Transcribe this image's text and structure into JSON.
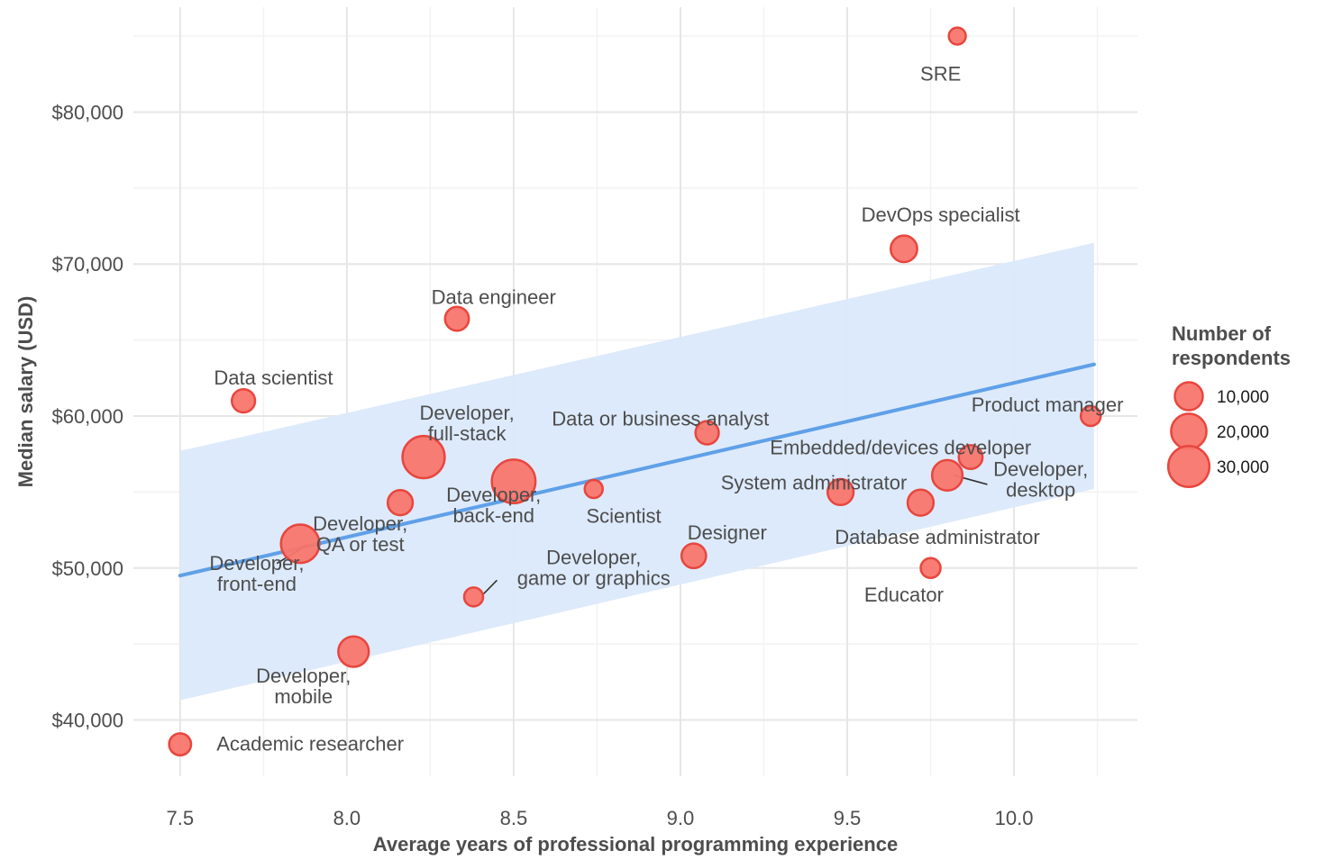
{
  "chart_data": {
    "type": "scatter",
    "title": "",
    "xlabel": "Average years of professional programming experience",
    "ylabel": "Median salary (USD)",
    "xlim": [
      7.36,
      10.37
    ],
    "ylim": [
      36300,
      86900
    ],
    "x_ticks": [
      7.5,
      8.0,
      8.5,
      9.0,
      9.5,
      10.0
    ],
    "x_tick_labels": [
      "7.5",
      "8.0",
      "8.5",
      "9.0",
      "9.5",
      "10.0"
    ],
    "y_ticks": [
      40000,
      50000,
      60000,
      70000,
      80000
    ],
    "y_tick_labels": [
      "$40,000",
      "$50,000",
      "$60,000",
      "$70,000",
      "$80,000"
    ],
    "grid": true,
    "point_color": "#f8766d",
    "point_edge_color": "#e8463e",
    "trend_color": "#5fa0e8",
    "band_color": "#dbe9fb",
    "trend": {
      "x": [
        7.5,
        10.24
      ],
      "y": [
        49500,
        63400
      ],
      "ci_lower": [
        41300,
        55200
      ],
      "ci_upper": [
        57700,
        71400
      ]
    },
    "points": [
      {
        "lines": [
          "SRE"
        ],
        "x": 9.83,
        "y": 85000,
        "n": 1500,
        "label_x": 9.78,
        "label_y": 82500
      },
      {
        "lines": [
          "DevOps specialist"
        ],
        "x": 9.67,
        "y": 71000,
        "n": 8500,
        "label_x": 9.78,
        "label_y": 73200
      },
      {
        "lines": [
          "Data engineer"
        ],
        "x": 8.33,
        "y": 66400,
        "n": 6000,
        "label_x": 8.44,
        "label_y": 67800
      },
      {
        "lines": [
          "Data scientist"
        ],
        "x": 7.69,
        "y": 61000,
        "n": 5500,
        "label_x": 7.78,
        "label_y": 62500
      },
      {
        "lines": [
          "Product manager"
        ],
        "x": 10.23,
        "y": 60000,
        "n": 3000,
        "label_x": 10.1,
        "label_y": 60700
      },
      {
        "lines": [
          "Data or business analyst"
        ],
        "x": 9.08,
        "y": 58900,
        "n": 5500,
        "label_x": 8.94,
        "label_y": 59800,
        "leader": [
          9.07,
          59100,
          9.01,
          59800
        ]
      },
      {
        "lines": [
          "Developer,",
          "full-stack"
        ],
        "x": 8.23,
        "y": 57300,
        "n": 32000,
        "label_x": 8.36,
        "label_y": 59500
      },
      {
        "lines": [
          "Embedded/devices developer"
        ],
        "x": 9.87,
        "y": 57300,
        "n": 6000,
        "label_x": 9.66,
        "label_y": 57900
      },
      {
        "lines": [
          "Developer,",
          "desktop"
        ],
        "x": 9.8,
        "y": 56100,
        "n": 13000,
        "label_x": 10.08,
        "label_y": 55800,
        "leader": [
          9.82,
          56100,
          9.92,
          55500
        ]
      },
      {
        "lines": [
          "Developer,",
          "back-end"
        ],
        "x": 8.5,
        "y": 55700,
        "n": 35000,
        "label_x": 8.44,
        "label_y": 54100
      },
      {
        "lines": [
          "Scientist"
        ],
        "x": 8.74,
        "y": 55200,
        "n": 2000,
        "label_x": 8.83,
        "label_y": 53400
      },
      {
        "lines": [
          "System administrator"
        ],
        "x": 9.48,
        "y": 55000,
        "n": 8000,
        "label_x": 9.4,
        "label_y": 55600
      },
      {
        "lines": [
          "Developer,",
          "QA or test"
        ],
        "x": 8.16,
        "y": 54300,
        "n": 7000,
        "label_x": 8.04,
        "label_y": 52200,
        "leader": [
          7.88,
          51500,
          7.79,
          50300
        ]
      },
      {
        "lines": [
          "Database administrator"
        ],
        "x": 9.72,
        "y": 54300,
        "n": 8000,
        "label_x": 9.77,
        "label_y": 52000
      },
      {
        "lines": [
          "Developer,",
          "front-end"
        ],
        "x": 7.86,
        "y": 51600,
        "n": 25000,
        "label_x": 7.73,
        "label_y": 49600
      },
      {
        "lines": [
          "Designer"
        ],
        "x": 9.04,
        "y": 50800,
        "n": 6500,
        "label_x": 9.14,
        "label_y": 52300
      },
      {
        "lines": [
          "Educator"
        ],
        "x": 9.75,
        "y": 50000,
        "n": 3000,
        "label_x": 9.67,
        "label_y": 48200
      },
      {
        "lines": [
          "Developer,",
          "game or graphics"
        ],
        "x": 8.38,
        "y": 48100,
        "n": 2500,
        "label_x": 8.74,
        "label_y": 50000,
        "leader": [
          8.41,
          48300,
          8.45,
          49200
        ]
      },
      {
        "lines": [
          "Developer,",
          "mobile"
        ],
        "x": 8.02,
        "y": 44500,
        "n": 13000,
        "label_x": 7.87,
        "label_y": 42200
      },
      {
        "lines": [
          "Academic researcher"
        ],
        "x": 7.5,
        "y": 38400,
        "n": 4500,
        "label_x": 7.89,
        "label_y": 38400
      }
    ],
    "legend": {
      "title_lines": [
        "Number of",
        "respondents"
      ],
      "placement": "right",
      "entries": [
        {
          "value": 10000,
          "label": "10,000"
        },
        {
          "value": 20000,
          "label": "20,000"
        },
        {
          "value": 30000,
          "label": "30,000"
        }
      ]
    }
  }
}
